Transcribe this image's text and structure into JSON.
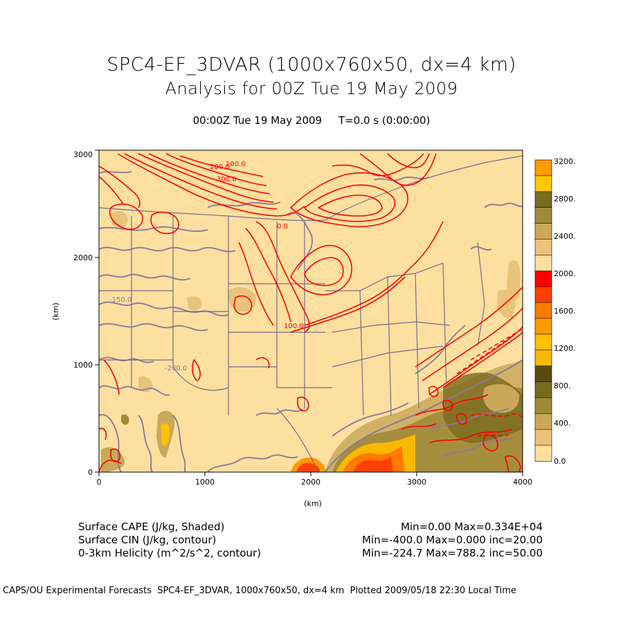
{
  "title": {
    "line1": "SPC4-EF_3DVAR (1000x760x50, dx=4 km)",
    "line2": "Analysis for 00Z Tue 19 May 2009"
  },
  "valid_time": "00:00Z Tue 19 May 2009",
  "forecast_time": "T=0.0 s (0:00:00)",
  "axes": {
    "x_label": "(km)",
    "y_label": "(km)",
    "x_ticks": [
      "0",
      "1000",
      "2000",
      "3000",
      "4000"
    ],
    "y_ticks": [
      "0",
      "1000",
      "2000",
      "3000"
    ],
    "x_range": [
      0,
      4000
    ],
    "y_range": [
      0,
      3000
    ]
  },
  "colorbar": {
    "labels": [
      "3200.",
      "2800.",
      "2400.",
      "2000.",
      "1600.",
      "1200.",
      "800.",
      "400.",
      "0.0"
    ],
    "colors": [
      "#fde0a0",
      "#e8c37a",
      "#c9a85a",
      "#a08a3a",
      "#7a6a1e",
      "#5a4a10",
      "#f8b800",
      "#ffc000",
      "#ff9a00",
      "#ff7a00",
      "#ff4000",
      "#ff0000",
      "#fde0a0",
      "#e8c37a",
      "#c9a85a",
      "#a08a3a",
      "#7a6a1e",
      "#ffc800",
      "#ff9a00"
    ]
  },
  "legend": {
    "rows": [
      {
        "name": "Surface CAPE (J/kg, Shaded)",
        "stats": "Min=0.00 Max=0.334E+04"
      },
      {
        "name": "Surface CIN (J/kg, contour)",
        "stats": "Min=-400.0 Max=0.000 inc=20.00"
      },
      {
        "name": "0-3km Helicity (m^2/s^2, contour)",
        "stats": "Min=-224.7 Max=788.2 inc=50.00"
      }
    ]
  },
  "contour_labels": [
    "100.0",
    "200.0",
    "300.0",
    "0.0",
    "100.0",
    "-150.0",
    "-200.0"
  ],
  "footer": "CAPS/OU Experimental Forecasts  SPC4-EF_3DVAR, 1000x760x50, dx=4 km  Plotted 2009/05/18 22:30 Local Time",
  "colors": {
    "map_fill": "#fde0a0",
    "border": "#7a6a8a",
    "helicity": "#ff0000",
    "cin": "#8a7a9a"
  }
}
